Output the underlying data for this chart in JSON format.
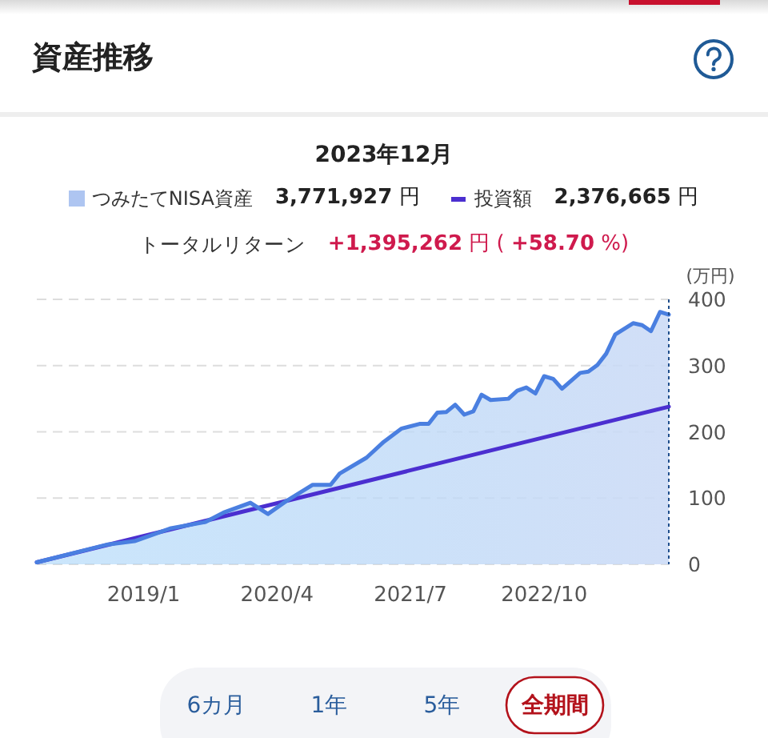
{
  "chart_data": {
    "type": "area",
    "title": "資産推移",
    "subtitle": "2023年12月",
    "ylabel": "(万円)",
    "x": [
      "2018-01",
      "2018-09",
      "2018-12",
      "2019-04",
      "2019-08",
      "2019-10",
      "2020-01",
      "2020-03",
      "2020-05",
      "2020-08",
      "2020-10",
      "2020-11",
      "2021-02",
      "2021-04",
      "2021-06",
      "2021-08",
      "2021-09",
      "2021-10",
      "2021-11",
      "2021-12",
      "2022-01",
      "2022-02",
      "2022-03",
      "2022-04",
      "2022-06",
      "2022-07",
      "2022-08",
      "2022-09",
      "2022-10",
      "2022-11",
      "2022-12",
      "2023-02",
      "2023-03",
      "2023-04",
      "2023-05",
      "2023-06",
      "2023-08",
      "2023-09",
      "2023-10",
      "2023-11",
      "2023-12"
    ],
    "series": [
      {
        "name": "つみたてNISA資産",
        "color": "#4a7fe0",
        "values": [
          3,
          30,
          35,
          54,
          64,
          78,
          93,
          76,
          95,
          120,
          120,
          137,
          161,
          185,
          205,
          212,
          212,
          229,
          230,
          241,
          226,
          231,
          256,
          248,
          250,
          262,
          267,
          258,
          284,
          280,
          265,
          289,
          291,
          301,
          318,
          347,
          364,
          361,
          352,
          381,
          377
        ]
      },
      {
        "name": "投資額",
        "type": "line",
        "color": "#4b2fd0",
        "x": [
          "2018-01",
          "2023-12"
        ],
        "values": [
          3,
          238
        ]
      }
    ],
    "xlim": [
      "2018-01",
      "2023-12"
    ],
    "xticks": [
      {
        "value": "2019-01",
        "label": "2019/1"
      },
      {
        "value": "2020-04",
        "label": "2020/4"
      },
      {
        "value": "2021-07",
        "label": "2021/7"
      },
      {
        "value": "2022-10",
        "label": "2022/10"
      }
    ],
    "ylim": [
      0,
      400
    ],
    "yticks": [
      0,
      100,
      200,
      300,
      400
    ],
    "grid": "y",
    "legend": "top",
    "ref_lines": [
      {
        "axis": "x",
        "value": "2023-12",
        "color": "#1f4e8c",
        "line_style": "dotted"
      }
    ],
    "annotations": [
      "3,771,927 円",
      "2,376,665 円",
      "トータルリターン",
      "+1,395,262 円 ( +58.70 %)",
      "6カ月",
      "1年",
      "5年",
      "全期間"
    ]
  }
}
